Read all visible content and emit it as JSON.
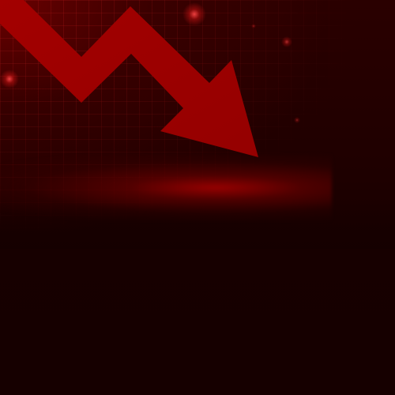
{
  "scene": {
    "background_color": "#1a0000",
    "arrow_color": "#9c0000",
    "glow_color": "#c00000",
    "grid_color": "#c81e1e",
    "icon": "downward-trend-arrow-icon"
  }
}
